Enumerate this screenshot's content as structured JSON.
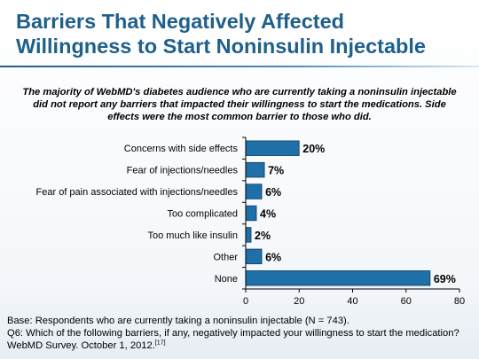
{
  "slide": {
    "title_line1": "Barriers That Negatively Affected",
    "title_line2": "Willingness to Start Noninsulin Injectable",
    "subtitle": "The majority of WebMD's diabetes audience who are currently taking a noninsulin injectable did not report any barriers that impacted their willingness to start the medications. Side effects were the most common barrier to those who did.",
    "footer_base": "Base: Respondents who are currently taking a noninsulin injectable (N = 743).",
    "footer_question": "Q6: Which of the following barriers, if any, negatively impacted your willingness to start the medication?",
    "footer_source": "WebMD Survey. October 1, 2012.",
    "footer_ref": "[17]",
    "accent_color": "#1f5f8b"
  },
  "chart_data": {
    "type": "bar",
    "orientation": "horizontal",
    "categories": [
      "Concerns with side effects",
      "Fear of injections/needles",
      "Fear of pain associated with injections/needles",
      "Too complicated",
      "Too much like insulin",
      "Other",
      "None"
    ],
    "values": [
      20,
      7,
      6,
      4,
      2,
      6,
      69
    ],
    "value_labels": [
      "20%",
      "7%",
      "6%",
      "4%",
      "2%",
      "6%",
      "69%"
    ],
    "xlim": [
      0,
      80
    ],
    "xticks": [
      0,
      20,
      40,
      60,
      80
    ],
    "bar_color": "#1f6fa8",
    "bar_stroke": "#0d3d63",
    "grid": false,
    "legend": false
  }
}
